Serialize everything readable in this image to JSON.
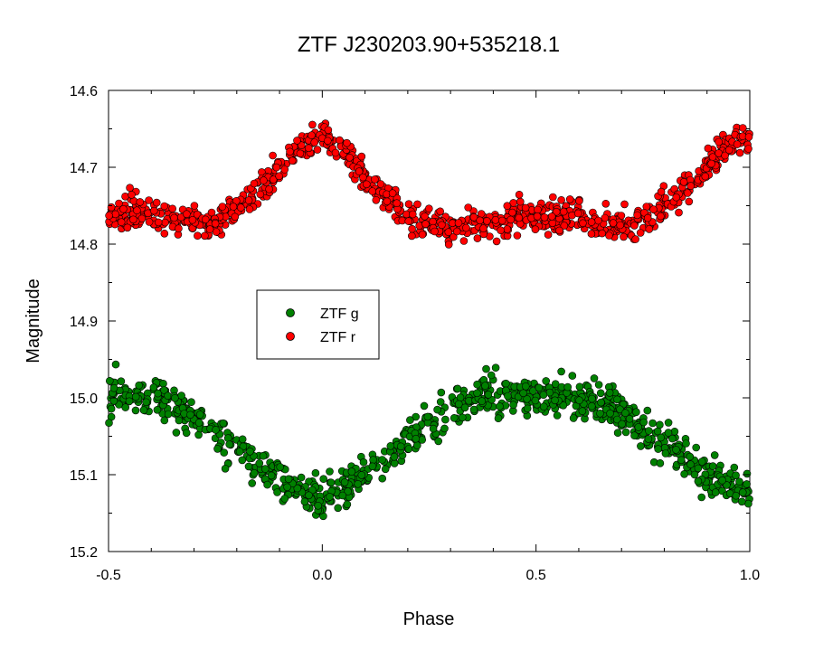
{
  "chart_data": {
    "type": "scatter",
    "title": "ZTF J230203.90+535218.1",
    "xlabel": "Phase",
    "ylabel": "Magnitude",
    "xlim": [
      -0.5,
      1.0
    ],
    "ylim": [
      14.6,
      15.2
    ],
    "y_inverted": true,
    "x_ticks": [
      -0.5,
      0.0,
      0.5,
      1.0
    ],
    "x_tick_labels": [
      "-0.5",
      "0.0",
      "0.5",
      "1.0"
    ],
    "y_ticks": [
      14.6,
      14.7,
      14.8,
      14.9,
      15.0,
      15.1,
      15.2
    ],
    "y_tick_labels": [
      "14.6",
      "14.7",
      "14.8",
      "14.9",
      "15.0",
      "15.1",
      "15.2"
    ],
    "grid": false,
    "legend_position": "center-left",
    "series": [
      {
        "name": "ZTF g",
        "color": "#008000",
        "x": [
          -0.5,
          -0.45,
          -0.4,
          -0.35,
          -0.3,
          -0.25,
          -0.2,
          -0.15,
          -0.1,
          -0.05,
          0.0,
          0.05,
          0.1,
          0.15,
          0.2,
          0.25,
          0.3,
          0.35,
          0.4,
          0.45,
          0.5,
          0.55,
          0.6,
          0.65,
          0.7,
          0.75,
          0.8,
          0.85,
          0.9,
          0.95,
          1.0
        ],
        "y": [
          15.0,
          14.995,
          15.0,
          15.005,
          15.025,
          15.045,
          15.065,
          15.085,
          15.105,
          15.12,
          15.13,
          15.115,
          15.095,
          15.075,
          15.055,
          15.035,
          15.015,
          15.0,
          14.995,
          15.0,
          15.0,
          15.0,
          15.0,
          15.005,
          15.02,
          15.04,
          15.06,
          15.08,
          15.1,
          15.115,
          15.125
        ]
      },
      {
        "name": "ZTF r",
        "color": "#ff0000",
        "x": [
          -0.5,
          -0.45,
          -0.4,
          -0.35,
          -0.3,
          -0.25,
          -0.2,
          -0.15,
          -0.1,
          -0.05,
          0.0,
          0.05,
          0.1,
          0.15,
          0.2,
          0.25,
          0.3,
          0.35,
          0.4,
          0.45,
          0.5,
          0.55,
          0.6,
          0.65,
          0.7,
          0.75,
          0.8,
          0.85,
          0.9,
          0.95,
          1.0
        ],
        "y": [
          14.765,
          14.76,
          14.76,
          14.765,
          14.77,
          14.775,
          14.755,
          14.73,
          14.7,
          14.67,
          14.66,
          14.675,
          14.71,
          14.74,
          14.765,
          14.775,
          14.78,
          14.775,
          14.77,
          14.765,
          14.765,
          14.765,
          14.765,
          14.77,
          14.775,
          14.77,
          14.75,
          14.725,
          14.7,
          14.67,
          14.655
        ]
      }
    ]
  }
}
